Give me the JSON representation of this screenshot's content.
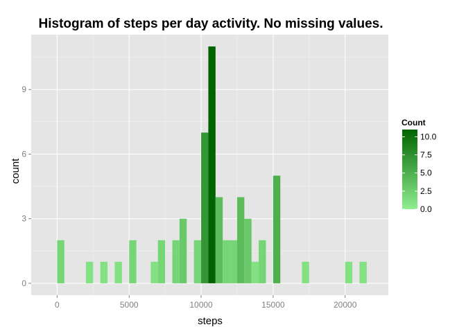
{
  "chart_data": {
    "type": "bar",
    "title": "Histogram of steps per day activity. No missing values.",
    "xlabel": "steps",
    "ylabel": "count",
    "xlim": [
      -1800,
      23000
    ],
    "ylim": [
      -0.55,
      11.55
    ],
    "x_ticks": [
      0,
      5000,
      10000,
      15000,
      20000
    ],
    "x_tick_labels": [
      "0",
      "5000",
      "10000",
      "15000",
      "20000"
    ],
    "y_ticks": [
      0,
      3,
      6,
      9
    ],
    "y_tick_labels": [
      "0",
      "3",
      "6",
      "9"
    ],
    "bin_width": 500,
    "bins": [
      {
        "x": 250,
        "count": 2
      },
      {
        "x": 2250,
        "count": 1
      },
      {
        "x": 3250,
        "count": 1
      },
      {
        "x": 4250,
        "count": 1
      },
      {
        "x": 5250,
        "count": 2
      },
      {
        "x": 6750,
        "count": 1
      },
      {
        "x": 7250,
        "count": 2
      },
      {
        "x": 8250,
        "count": 2
      },
      {
        "x": 8750,
        "count": 3
      },
      {
        "x": 9750,
        "count": 2
      },
      {
        "x": 10250,
        "count": 7
      },
      {
        "x": 10750,
        "count": 11
      },
      {
        "x": 11250,
        "count": 4
      },
      {
        "x": 11750,
        "count": 2
      },
      {
        "x": 12250,
        "count": 2
      },
      {
        "x": 12750,
        "count": 4
      },
      {
        "x": 13250,
        "count": 3
      },
      {
        "x": 13750,
        "count": 1
      },
      {
        "x": 14250,
        "count": 2
      },
      {
        "x": 15250,
        "count": 5
      },
      {
        "x": 17250,
        "count": 1
      },
      {
        "x": 20250,
        "count": 1
      },
      {
        "x": 21250,
        "count": 1
      }
    ],
    "legend": {
      "title": "Count",
      "position": "right",
      "ticks": [
        0,
        2.5,
        5,
        7.5,
        10
      ],
      "tick_labels": [
        "0.0",
        "2.5",
        "5.0",
        "7.5",
        "10.0"
      ],
      "range": [
        0,
        11
      ],
      "color_low": "#90ee90",
      "color_high": "#006400"
    },
    "panel_background": "#e5e5e5",
    "grid": true
  }
}
